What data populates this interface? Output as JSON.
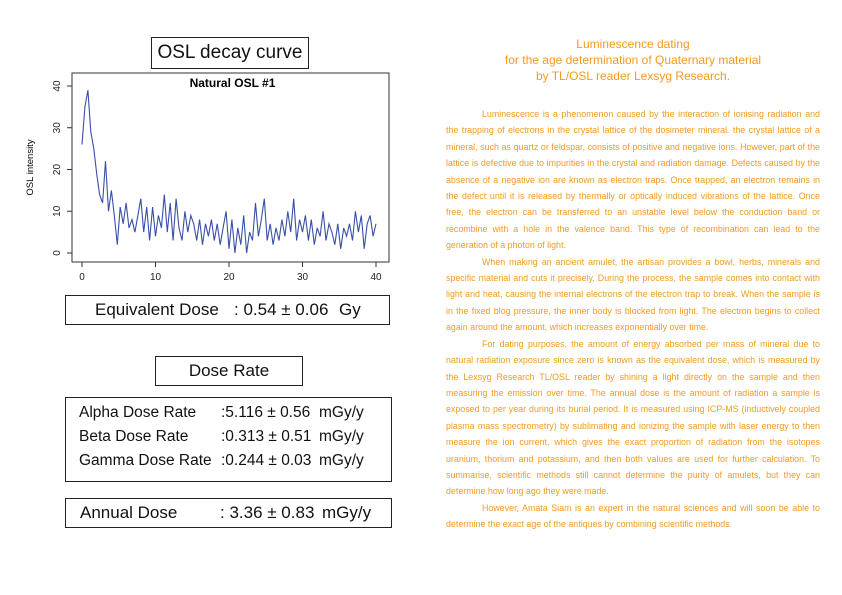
{
  "left": {
    "chart_heading": "OSL decay curve",
    "equivalent_dose": {
      "label": "Equivalent Dose",
      "value": ": 0.54 ± 0.06",
      "unit": "Gy"
    },
    "dose_rate_heading": "Dose Rate",
    "dose_rates": [
      {
        "label": "Alpha Dose Rate",
        "value": ":5.116 ± 0.56",
        "unit": "mGy/y"
      },
      {
        "label": "Beta Dose Rate",
        "value": ":0.313 ± 0.51",
        "unit": "mGy/y"
      },
      {
        "label": "Gamma Dose Rate",
        "value": ":0.244 ± 0.03",
        "unit": "mGy/y"
      }
    ],
    "annual_dose": {
      "label": "Annual Dose",
      "value": ": 3.36 ± 0.83",
      "unit": "mGy/y"
    }
  },
  "chart_data": {
    "type": "line",
    "title": "Natural OSL #1",
    "xlabel": "",
    "ylabel": "OSL intensity",
    "xlim": [
      0,
      40
    ],
    "ylim": [
      0,
      40
    ],
    "xticks": [
      0,
      10,
      20,
      30,
      40
    ],
    "yticks": [
      0,
      10,
      20,
      30,
      40
    ],
    "grid": false,
    "color": "#3a4fa8",
    "x_start": 0,
    "x_step": 0.4,
    "values": [
      26,
      35,
      39,
      29,
      25,
      19,
      14,
      12,
      22,
      10,
      15,
      9,
      2,
      11,
      7,
      12,
      6,
      8,
      5,
      9,
      13,
      5,
      11,
      3,
      11,
      4,
      9,
      6,
      14,
      5,
      12,
      3,
      13,
      6,
      3,
      10,
      5,
      9,
      7,
      3,
      8,
      2,
      7,
      4,
      8,
      3,
      7,
      2,
      6,
      10,
      1,
      8,
      0,
      6,
      2,
      9,
      0,
      5,
      3,
      12,
      4,
      8,
      13,
      3,
      7,
      2,
      6,
      3,
      8,
      4,
      10,
      5,
      13,
      3,
      8,
      5,
      9,
      3,
      8,
      2,
      6,
      4,
      10,
      3,
      7,
      5,
      2,
      7,
      1,
      6,
      4,
      7,
      3,
      10,
      5,
      9,
      1,
      7,
      9,
      4,
      7
    ]
  },
  "right": {
    "title": [
      "Luminescence dating",
      "for the age determination of Quaternary material",
      "by TL/OSL reader Lexsyg Research."
    ],
    "paragraphs": [
      "Luminescence is a phenomenon caused by the interaction of ionising radiation and the trapping of electrons in the crystal lattice of the dosimeter mineral. the crystal lattice of a mineral, such as quartz or feldspar, consists of positive and negative ions. However, part of the lattice is defective due to impurities in the crystal and radiation damage. Defects caused by the absence of a negative ion are known as electron traps. Once trapped, an electron remains in the defect until it is released by thermally or optically induced vibrations of the lattice. Once free, the electron can be transferred to an unstable level below the conduction band or recombine with a hole in the valence band. This type of recombination can lead to the generation of a photon of light.",
      "When making an ancient amulet, the artisan provides a bowl, herbs, minerals and specific material and cuts it precisely. During the process, the sample comes into contact with light and heat, causing the internal electrons of the electron trap to break. When the sample is in the fixed blog pressure, the inner body is blocked from light. The electron begins to collect again around the amount, which increases exponentially over time.",
      "For dating purposes, the amount of energy absorbed per mass of mineral due to natural radiation exposure since zero is known as the equivalent dose, which is measured by the Lexsyg Research TL/OSL reader by shining a light directly on the sample and then measuring the emission over time. The annual dose is the amount of radiation a sample is exposed to per year during its burial period. It is measured using ICP-MS (inductively coupled plasma mass spectrometry) by sublimating and ionizing the sample with laser energy to then measure the ion current, which gives the exact proportion of radiation from the isotopes uranium, thorium and potassium, and then both values are used for further calculation. To summarise, scientific methods still cannot determine the purity of amulets, but they can determine how long ago they were made.",
      "However, Amata Siam is an expert in the natural sciences and will soon be able to determine the exact age of the antiques by combining scientific methods."
    ]
  }
}
